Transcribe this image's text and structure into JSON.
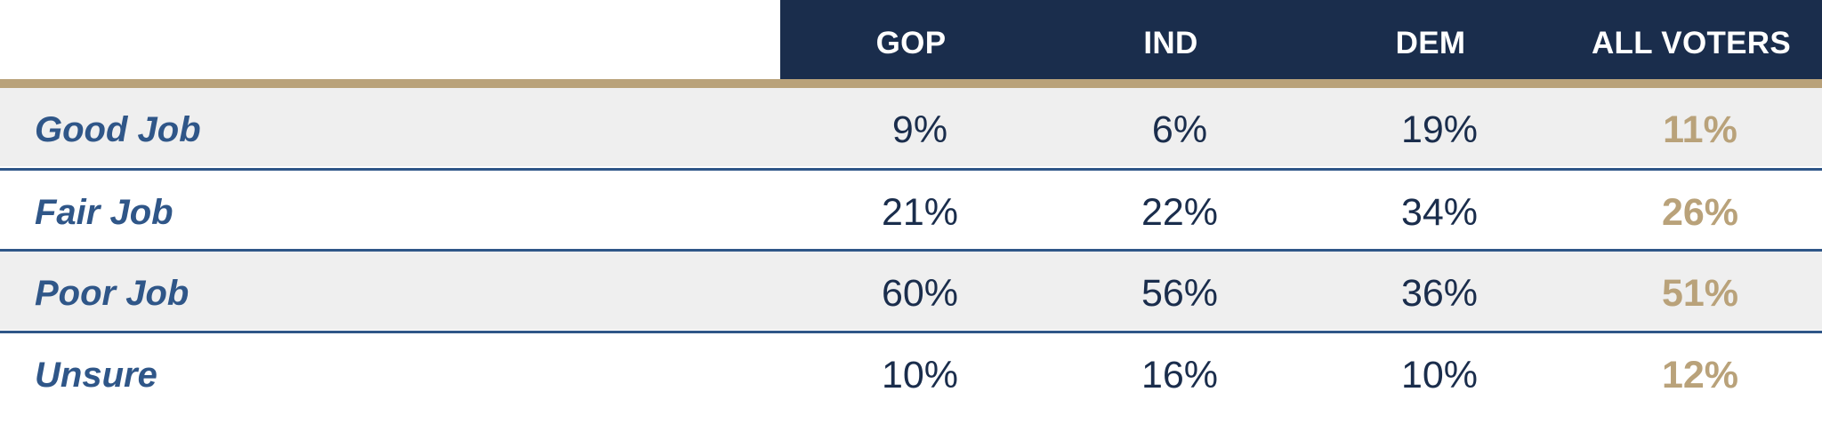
{
  "chart_data": {
    "type": "table",
    "columns": [
      "GOP",
      "IND",
      "DEM",
      "ALL VOTERS"
    ],
    "rows": [
      {
        "label": "Good Job",
        "values": [
          "9%",
          "6%",
          "19%",
          "11%"
        ]
      },
      {
        "label": "Fair Job",
        "values": [
          "21%",
          "22%",
          "34%",
          "26%"
        ]
      },
      {
        "label": "Poor Job",
        "values": [
          "60%",
          "56%",
          "36%",
          "51%"
        ]
      },
      {
        "label": "Unsure",
        "values": [
          "10%",
          "16%",
          "10%",
          "12%"
        ]
      }
    ]
  },
  "colors": {
    "header_bg": "#1a2d4c",
    "accent_gold": "#b9a27a",
    "label_blue": "#2f5688",
    "row_shade": "#efefef",
    "value_text": "#1a2d4c"
  }
}
